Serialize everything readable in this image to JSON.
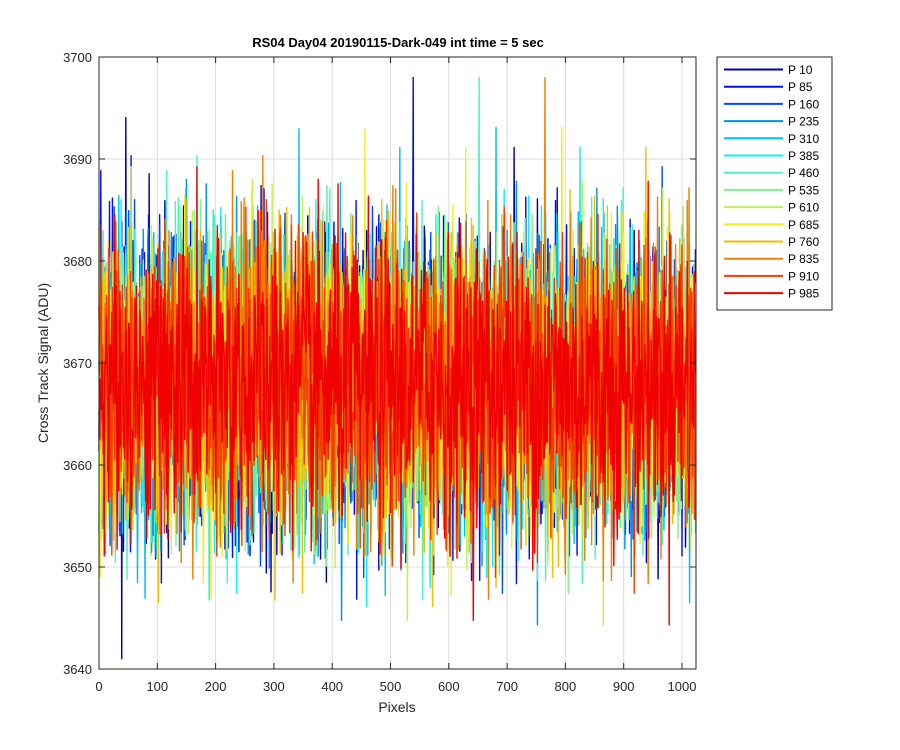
{
  "chart_data": {
    "type": "line",
    "title": "RS04 Day04 20190115-Dark-049 int time = 5 sec",
    "xlabel": "Pixels",
    "ylabel": "Cross Track Signal (ADU)",
    "xlim": [
      0,
      1024
    ],
    "ylim": [
      3640,
      3700
    ],
    "x_ticks": [
      0,
      100,
      200,
      300,
      400,
      500,
      600,
      700,
      800,
      900,
      1000
    ],
    "y_ticks": [
      3640,
      3650,
      3660,
      3670,
      3680,
      3690,
      3700
    ],
    "x_tick_labels": [
      "0",
      "100",
      "200",
      "300",
      "400",
      "500",
      "600",
      "700",
      "800",
      "900",
      "1000"
    ],
    "y_tick_labels": [
      "3640",
      "3650",
      "3660",
      "3670",
      "3680",
      "3690",
      "3700"
    ],
    "grid": true,
    "legend_position": "outside-top-right",
    "x_points": 1024,
    "series": [
      {
        "name": "P 10",
        "color": "#0000a8",
        "mean": 3668.0,
        "std": 7.0
      },
      {
        "name": "P 85",
        "color": "#0010e8",
        "mean": 3668.0,
        "std": 7.0
      },
      {
        "name": "P 160",
        "color": "#0050f0",
        "mean": 3668.0,
        "std": 7.0
      },
      {
        "name": "P 235",
        "color": "#0090f0",
        "mean": 3668.0,
        "std": 7.0
      },
      {
        "name": "P 310",
        "color": "#00c0f0",
        "mean": 3668.0,
        "std": 7.0
      },
      {
        "name": "P 385",
        "color": "#10f0f0",
        "mean": 3668.0,
        "std": 7.0
      },
      {
        "name": "P 460",
        "color": "#50f0c0",
        "mean": 3668.0,
        "std": 7.0
      },
      {
        "name": "P 535",
        "color": "#80f090",
        "mean": 3668.0,
        "std": 7.0
      },
      {
        "name": "P 610",
        "color": "#c0f050",
        "mean": 3668.0,
        "std": 7.0
      },
      {
        "name": "P 685",
        "color": "#f0f020",
        "mean": 3668.0,
        "std": 7.0
      },
      {
        "name": "P 760",
        "color": "#f0c000",
        "mean": 3668.0,
        "std": 7.0
      },
      {
        "name": "P 835",
        "color": "#f08000",
        "mean": 3668.0,
        "std": 7.0
      },
      {
        "name": "P 910",
        "color": "#f04000",
        "mean": 3668.0,
        "std": 7.0
      },
      {
        "name": "P 985",
        "color": "#f00000",
        "mean": 3668.0,
        "std": 7.0
      }
    ],
    "y_max_observed": 3699,
    "y_min_observed": 3641
  }
}
